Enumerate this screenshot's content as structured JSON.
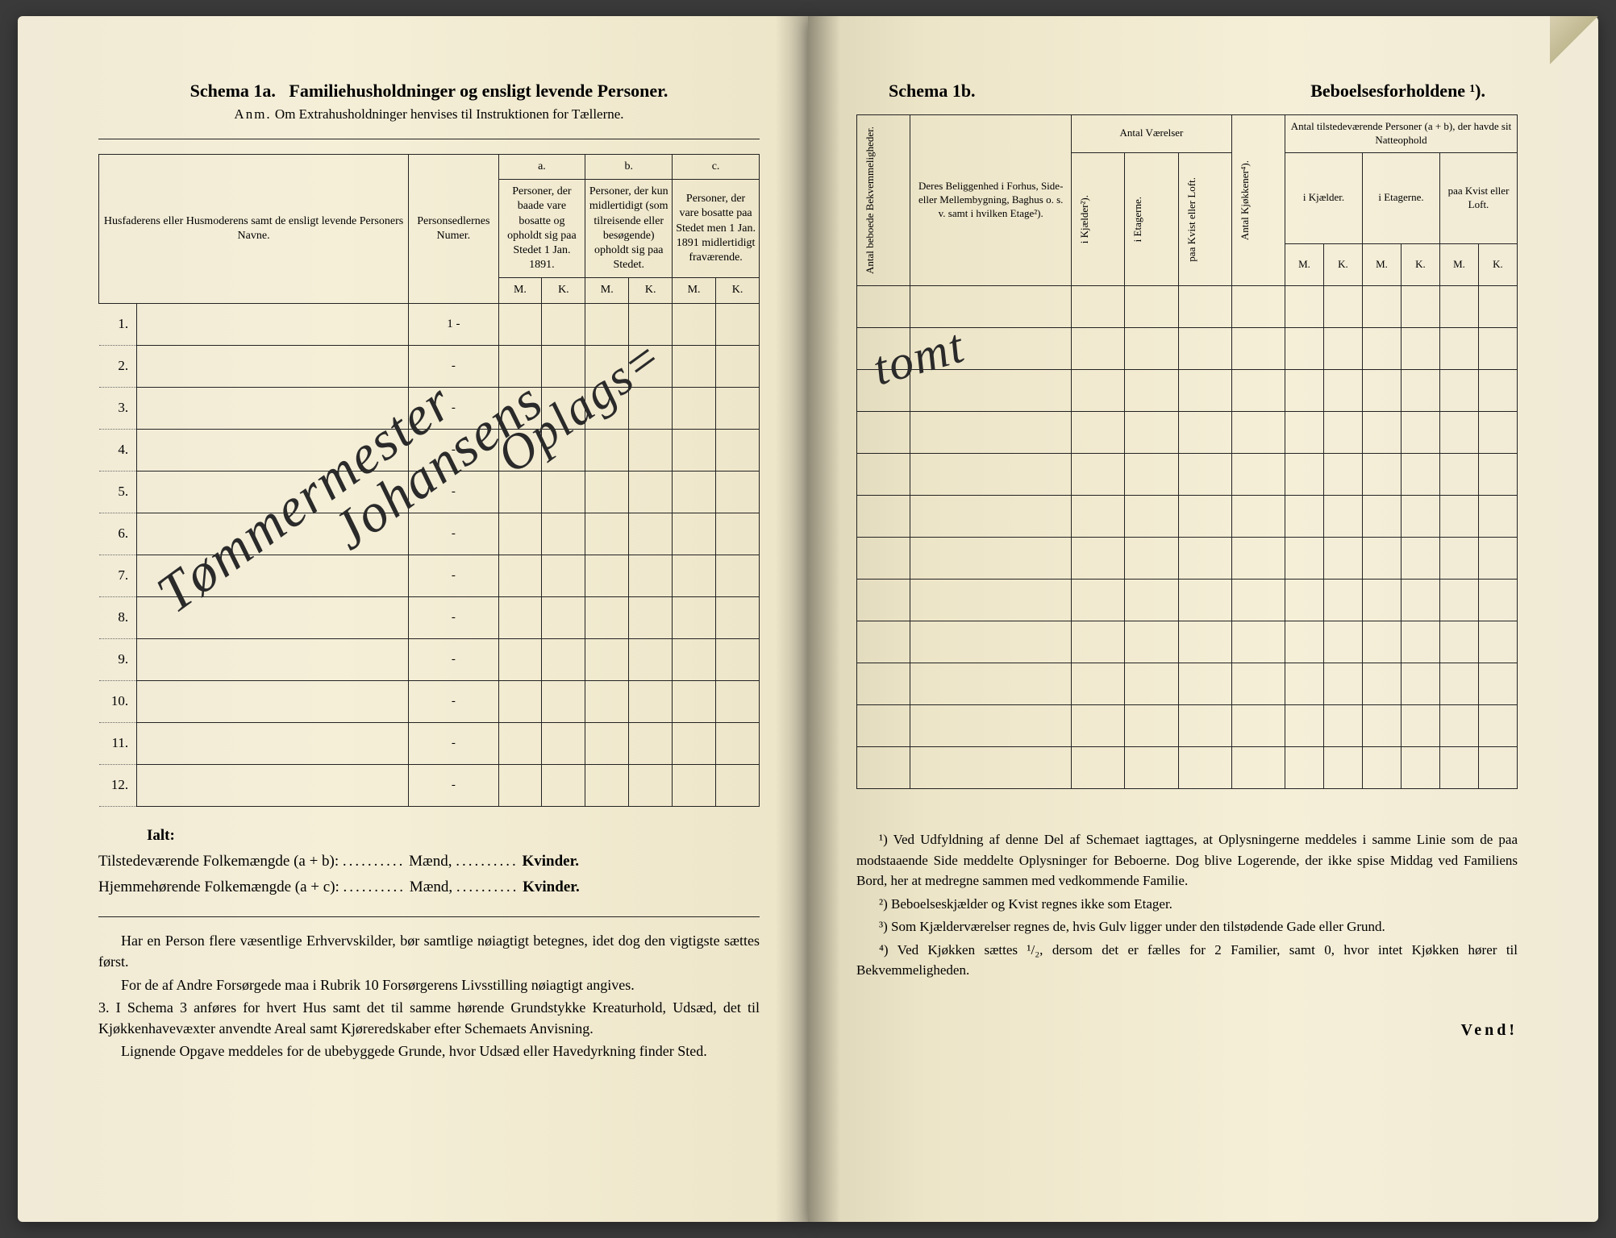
{
  "left": {
    "schema_label": "Schema 1a.",
    "schema_title": "Familiehusholdninger og ensligt levende Personer.",
    "subtitle_prefix": "Anm.",
    "subtitle": "Om Extrahusholdninger henvises til Instruktionen for Tællerne.",
    "headers": {
      "col1": "Husfaderens eller Husmoderens samt de ensligt levende Personers Navne.",
      "col2": "Personsedlernes Numer.",
      "group_a": "a.",
      "group_a_text": "Personer, der baade vare bosatte og opholdt sig paa Stedet 1 Jan. 1891.",
      "group_b": "b.",
      "group_b_text": "Personer, der kun midlertidigt (som tilreisende eller besøgende) opholdt sig paa Stedet.",
      "group_c": "c.",
      "group_c_text": "Personer, der vare bosatte paa Stedet men 1 Jan. 1891 midlertidigt fraværende.",
      "m": "M.",
      "k": "K."
    },
    "row_numbers": [
      "1.",
      "2.",
      "3.",
      "4.",
      "5.",
      "6.",
      "7.",
      "8.",
      "9.",
      "10.",
      "11.",
      "12."
    ],
    "sedler_first": "1 -",
    "sedler_dash": "-",
    "summary": {
      "ialt": "Ialt:",
      "line1_a": "Tilstedeværende Folkemængde (a + b):",
      "line2_a": "Hjemmehørende Folkemængde (a + c):",
      "dots": "..........",
      "maend": "Mænd,",
      "kvinder": "Kvinder."
    },
    "instructions": {
      "p1": "Har en Person flere væsentlige Erhvervskilder, bør samtlige nøiagtigt betegnes, idet dog den vigtigste sættes først.",
      "p2": "For de af Andre Forsørgede maa i Rubrik 10 Forsørgerens Livsstilling nøiagtigt angives.",
      "p3_num": "3.",
      "p3": "I Schema 3 anføres for hvert Hus samt det til samme hørende Grundstykke Kreaturhold, Udsæd, det til Kjøkkenhavevæxter anvendte Areal samt Kjøreredskaber efter Schemaets Anvisning.",
      "p4": "Lignende Opgave meddeles for de ubebyggede Grunde, hvor Udsæd eller Havedyrkning finder Sted."
    },
    "handwriting": {
      "w1": "Tømmermester",
      "w2": "Johansens",
      "w3": "Oplags="
    }
  },
  "right": {
    "schema_label": "Schema 1b.",
    "schema_title": "Beboelsesforholdene ¹).",
    "headers": {
      "col1": "Antal beboede Bekvemmeligheder.",
      "col2": "Deres Beliggenhed i Forhus, Side- eller Mellembygning, Baghus o. s. v. samt i hvilken Etage²).",
      "vaerelser": "Antal Værelser",
      "v1": "i Kjælder²).",
      "v2": "i Etagerne.",
      "v3": "paa Kvist eller Loft.",
      "kjok": "Antal Kjøkkener⁴).",
      "personer": "Antal tilstedeværende Personer (a + b), der havde sit Natteophold",
      "p1": "i Kjælder.",
      "p2": "i Etagerne.",
      "p3": "paa Kvist eller Loft.",
      "m": "M.",
      "k": "K."
    },
    "row_count": 12,
    "footnotes": {
      "f1": "¹) Ved Udfyldning af denne Del af Schemaet iagttages, at Oplysningerne meddeles i samme Linie som de paa modstaaende Side meddelte Oplysninger for Beboerne. Dog blive Logerende, der ikke spise Middag ved Familiens Bord, her at medregne sammen med vedkommende Familie.",
      "f2": "²) Beboelseskjælder og Kvist regnes ikke som Etager.",
      "f3": "³) Som Kjælderværelser regnes de, hvis Gulv ligger under den tilstødende Gade eller Grund.",
      "f4": "⁴) Ved Kjøkken sættes ¹/₂, dersom det er fælles for 2 Familier, samt 0, hvor intet Kjøkken hører til Bekvemmeligheden."
    },
    "vend": "Vend!",
    "handwriting": "tomt"
  },
  "colors": {
    "paper": "#f0ead6",
    "ink": "#1a1a1a",
    "shadow": "#3a3a3a"
  }
}
